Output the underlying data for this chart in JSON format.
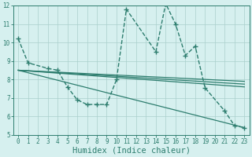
{
  "series": [
    {
      "x": [
        0,
        1,
        3,
        4,
        5,
        6,
        7,
        8,
        9,
        10,
        11,
        14,
        15,
        16,
        17,
        18,
        19,
        21,
        22,
        23
      ],
      "y": [
        10.2,
        8.9,
        8.6,
        8.5,
        7.6,
        6.9,
        6.65,
        6.65,
        6.65,
        8.0,
        11.8,
        9.5,
        12.1,
        11.0,
        9.3,
        9.8,
        7.55,
        6.3,
        5.5,
        5.4
      ],
      "color": "#2d7d6e",
      "marker": "+",
      "linewidth": 1.0,
      "markersize": 4,
      "linestyle": "--"
    },
    {
      "x": [
        0,
        23
      ],
      "y": [
        8.5,
        5.4
      ],
      "color": "#2d7d6e",
      "marker": null,
      "linewidth": 0.9,
      "markersize": 0,
      "linestyle": "-"
    },
    {
      "x": [
        0,
        23
      ],
      "y": [
        8.5,
        7.6
      ],
      "color": "#2d7d6e",
      "marker": null,
      "linewidth": 0.9,
      "markersize": 0,
      "linestyle": "-"
    },
    {
      "x": [
        0,
        23
      ],
      "y": [
        8.5,
        7.75
      ],
      "color": "#2d7d6e",
      "marker": null,
      "linewidth": 0.9,
      "markersize": 0,
      "linestyle": "-"
    },
    {
      "x": [
        0,
        23
      ],
      "y": [
        8.5,
        7.9
      ],
      "color": "#2d7d6e",
      "marker": null,
      "linewidth": 0.9,
      "markersize": 0,
      "linestyle": "-"
    }
  ],
  "xlim": [
    -0.5,
    23.5
  ],
  "ylim": [
    5,
    12
  ],
  "xticks": [
    0,
    1,
    2,
    3,
    4,
    5,
    6,
    7,
    8,
    9,
    10,
    11,
    12,
    13,
    14,
    15,
    16,
    17,
    18,
    19,
    20,
    21,
    22,
    23
  ],
  "yticks": [
    5,
    6,
    7,
    8,
    9,
    10,
    11,
    12
  ],
  "xlabel": "Humidex (Indice chaleur)",
  "background_color": "#d6f0ef",
  "grid_color": "#aacfcc",
  "line_color": "#2d7d6e",
  "tick_fontsize": 5.5,
  "xlabel_fontsize": 7.5
}
